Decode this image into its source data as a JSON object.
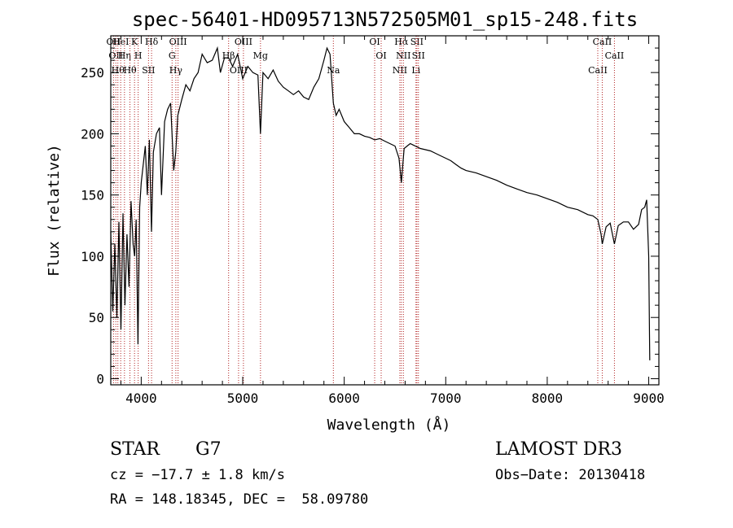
{
  "title": "spec-56401-HD095713N572505M01_sp15-248.fits",
  "info": {
    "object_class": "STAR",
    "subclass": "G7",
    "survey": "LAMOST DR3",
    "redshift": "cz = −17.7 ± 1.8 km/s",
    "obs_date": "Obs−Date: 20130418",
    "coords": "RA = 148.18345, DEC =  58.09780"
  },
  "chart_data": {
    "type": "line",
    "title": "spec-56401-HD095713N572505M01_sp15-248.fits",
    "xlabel": "Wavelength (Å)",
    "ylabel": "Flux (relative)",
    "xlim": [
      3700,
      9100
    ],
    "ylim": [
      -5,
      280
    ],
    "xticks": [
      4000,
      5000,
      6000,
      7000,
      8000,
      9000
    ],
    "yticks": [
      0,
      50,
      100,
      150,
      200,
      250
    ],
    "colors": {
      "line": "#000000",
      "marker": "#b22222",
      "axes": "#000000"
    },
    "series": [
      {
        "name": "Flux",
        "x": [
          3700,
          3720,
          3740,
          3760,
          3780,
          3800,
          3820,
          3840,
          3860,
          3880,
          3900,
          3920,
          3935,
          3950,
          3968,
          3985,
          4000,
          4020,
          4040,
          4060,
          4080,
          4101,
          4120,
          4150,
          4180,
          4200,
          4230,
          4260,
          4290,
          4320,
          4340,
          4360,
          4400,
          4440,
          4480,
          4520,
          4560,
          4600,
          4650,
          4700,
          4750,
          4780,
          4820,
          4861,
          4900,
          4950,
          5000,
          5050,
          5100,
          5150,
          5175,
          5200,
          5250,
          5300,
          5350,
          5400,
          5450,
          5500,
          5550,
          5600,
          5650,
          5700,
          5750,
          5800,
          5830,
          5860,
          5893,
          5920,
          5950,
          6000,
          6050,
          6100,
          6150,
          6200,
          6250,
          6300,
          6350,
          6400,
          6450,
          6500,
          6540,
          6563,
          6590,
          6620,
          6650,
          6700,
          6750,
          6800,
          6850,
          6900,
          6950,
          7000,
          7050,
          7100,
          7150,
          7200,
          7300,
          7400,
          7500,
          7600,
          7700,
          7800,
          7900,
          8000,
          8100,
          8200,
          8300,
          8400,
          8450,
          8498,
          8530,
          8542,
          8580,
          8620,
          8662,
          8700,
          8750,
          8800,
          8850,
          8900,
          8930,
          8960,
          8980,
          9000,
          9010
        ],
        "values": [
          120,
          55,
          110,
          50,
          128,
          40,
          135,
          60,
          118,
          75,
          145,
          110,
          100,
          130,
          28,
          140,
          160,
          175,
          190,
          150,
          195,
          120,
          185,
          200,
          205,
          150,
          210,
          220,
          225,
          170,
          185,
          215,
          228,
          240,
          235,
          245,
          250,
          265,
          258,
          260,
          270,
          250,
          262,
          262,
          255,
          265,
          245,
          255,
          250,
          248,
          200,
          250,
          245,
          252,
          243,
          238,
          235,
          232,
          235,
          230,
          228,
          238,
          245,
          260,
          270,
          265,
          225,
          215,
          220,
          210,
          205,
          200,
          200,
          198,
          197,
          195,
          196,
          194,
          192,
          190,
          180,
          160,
          188,
          190,
          192,
          190,
          188,
          187,
          186,
          184,
          182,
          180,
          178,
          175,
          172,
          170,
          168,
          165,
          162,
          158,
          155,
          152,
          150,
          147,
          144,
          140,
          138,
          134,
          133,
          130,
          118,
          110,
          124,
          127,
          110,
          125,
          128,
          128,
          122,
          126,
          138,
          140,
          146,
          100,
          15
        ]
      }
    ],
    "lines": [
      {
        "wave": 3727,
        "label": "OII"
      },
      {
        "wave": 3750,
        "label": "OII"
      },
      {
        "wave": 3770,
        "label": "Hθ"
      },
      {
        "wave": 3798,
        "label": "HeI"
      },
      {
        "wave": 3835,
        "label": "Hη"
      },
      {
        "wave": 3889,
        "label": "Hθ"
      },
      {
        "wave": 3934,
        "label": "K"
      },
      {
        "wave": 3970,
        "label": "H"
      },
      {
        "wave": 4072,
        "label": "SII"
      },
      {
        "wave": 4102,
        "label": "Hδ"
      },
      {
        "wave": 4304,
        "label": "G"
      },
      {
        "wave": 4341,
        "label": "Hγ"
      },
      {
        "wave": 4363,
        "label": "OIII"
      },
      {
        "wave": 4861,
        "label": "Hβ"
      },
      {
        "wave": 4959,
        "label": "OIII"
      },
      {
        "wave": 5007,
        "label": "OIII"
      },
      {
        "wave": 5175,
        "label": "Mg"
      },
      {
        "wave": 5893,
        "label": "Na"
      },
      {
        "wave": 6300,
        "label": "OI"
      },
      {
        "wave": 6364,
        "label": "OI"
      },
      {
        "wave": 6548,
        "label": "NII"
      },
      {
        "wave": 6563,
        "label": "Hα"
      },
      {
        "wave": 6583,
        "label": "NII"
      },
      {
        "wave": 6707,
        "label": "Li"
      },
      {
        "wave": 6716,
        "label": "SII"
      },
      {
        "wave": 6731,
        "label": "SII"
      },
      {
        "wave": 8498,
        "label": "CaII"
      },
      {
        "wave": 8542,
        "label": "CaII"
      },
      {
        "wave": 8662,
        "label": "CaII"
      }
    ]
  }
}
